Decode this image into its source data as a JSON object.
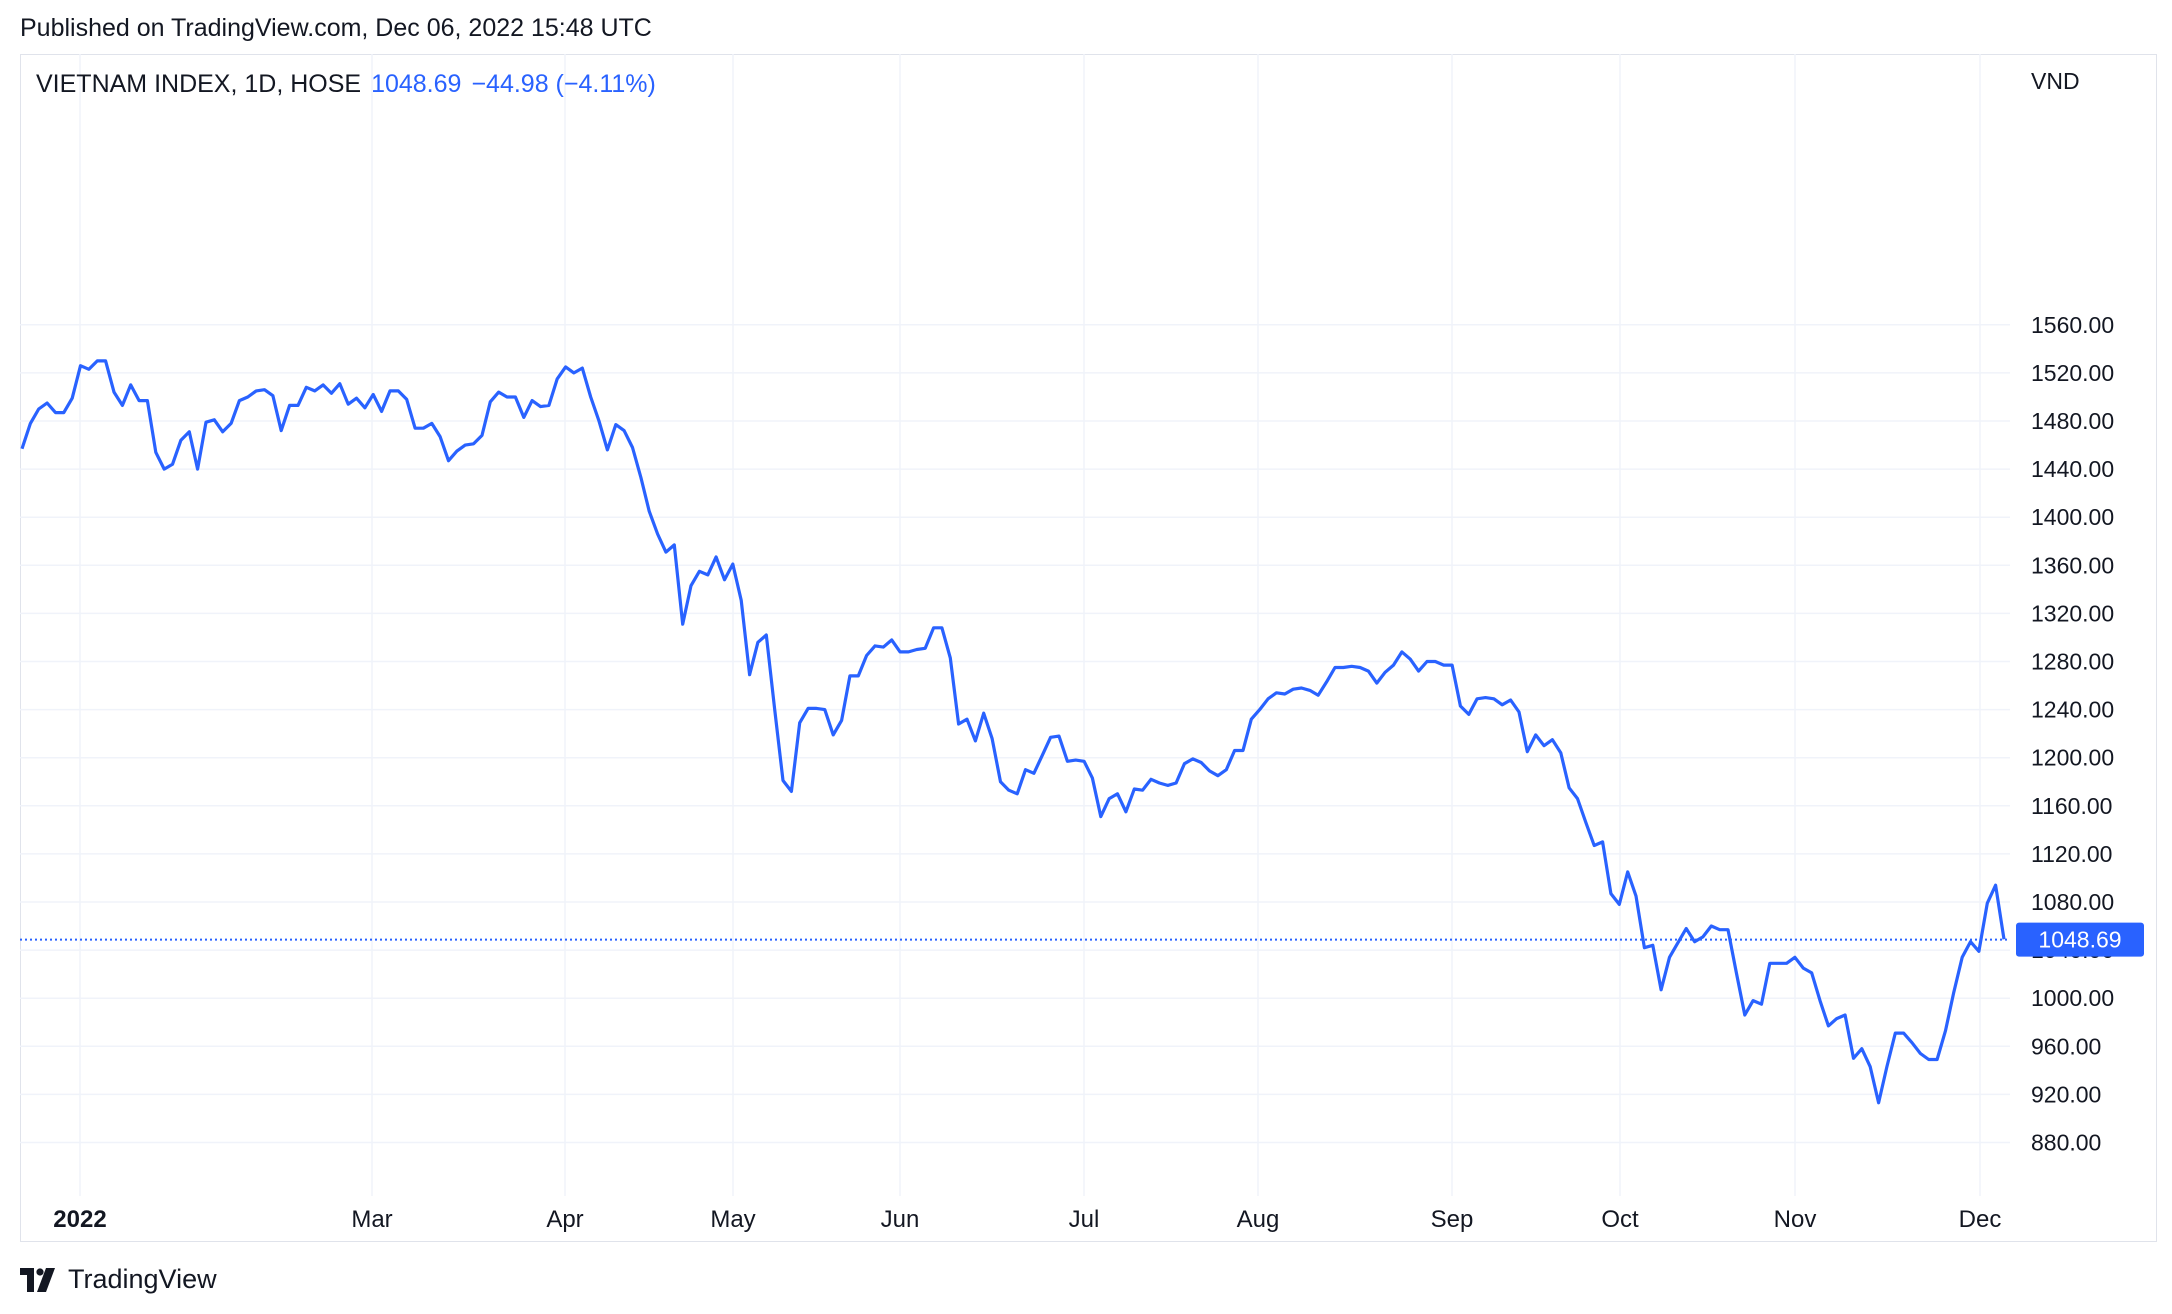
{
  "header": {
    "published": "Published on TradingView.com, Dec 06, 2022 15:48 UTC"
  },
  "legend": {
    "symbol": "VIETNAM INDEX, 1D, HOSE",
    "last_value": "1048.69",
    "change": "−44.98 (−4.11%)"
  },
  "footer": {
    "brand": "TradingView"
  },
  "colors": {
    "line": "#2962ff",
    "grid": "#f0f3fa",
    "text": "#131722"
  },
  "chart_data": {
    "type": "line",
    "currency_label": "VND",
    "last_price_label": "1048.69",
    "last_price": 1048.69,
    "ylim": [
      850,
      1570
    ],
    "y_ticks": [
      "1560.00",
      "1520.00",
      "1480.00",
      "1440.00",
      "1400.00",
      "1360.00",
      "1320.00",
      "1280.00",
      "1240.00",
      "1200.00",
      "1160.00",
      "1120.00",
      "1080.00",
      "1040.00",
      "1000.00",
      "960.00",
      "920.00",
      "880.00"
    ],
    "x_ticks": [
      "2022",
      "Mar",
      "Apr",
      "May",
      "Jun",
      "Jul",
      "Aug",
      "Sep",
      "Oct",
      "Nov",
      "Dec"
    ],
    "grid": true,
    "series": [
      {
        "values": [
          1457,
          1478,
          1490,
          1495,
          1487,
          1487,
          1499,
          1526,
          1523,
          1530,
          1530,
          1504,
          1493,
          1510,
          1497,
          1497,
          1454,
          1440,
          1444,
          1464,
          1471,
          1440,
          1479,
          1481,
          1471,
          1478,
          1497,
          1500,
          1505,
          1506,
          1501,
          1472,
          1493,
          1493,
          1508,
          1505,
          1510,
          1503,
          1511,
          1494,
          1499,
          1491,
          1502,
          1488,
          1505,
          1505,
          1498,
          1474,
          1474,
          1478,
          1467,
          1447,
          1455,
          1460,
          1461,
          1468,
          1496,
          1504,
          1500,
          1500,
          1483,
          1497,
          1492,
          1493,
          1515,
          1525,
          1520,
          1524,
          1500,
          1480,
          1456,
          1477,
          1472,
          1458,
          1433,
          1405,
          1386,
          1371,
          1377,
          1311,
          1343,
          1355,
          1352,
          1367,
          1348,
          1361,
          1331,
          1269,
          1296,
          1302,
          1240,
          1181,
          1172,
          1229,
          1241,
          1241,
          1240,
          1219,
          1231,
          1268,
          1268,
          1285,
          1293,
          1292,
          1298,
          1288,
          1288,
          1290,
          1291,
          1308,
          1308,
          1283,
          1228,
          1232,
          1214,
          1237,
          1216,
          1180,
          1173,
          1170,
          1190,
          1187,
          1202,
          1217,
          1218,
          1197,
          1198,
          1197,
          1183,
          1151,
          1166,
          1170,
          1155,
          1174,
          1173,
          1182,
          1179,
          1177,
          1179,
          1195,
          1199,
          1196,
          1189,
          1185,
          1190,
          1206,
          1206,
          1232,
          1240,
          1249,
          1254,
          1253,
          1257,
          1258,
          1256,
          1252,
          1263,
          1275,
          1275,
          1276,
          1275,
          1272,
          1262,
          1271,
          1277,
          1288,
          1282,
          1272,
          1280,
          1280,
          1277,
          1277,
          1243,
          1236,
          1249,
          1250,
          1249,
          1244,
          1248,
          1238,
          1205,
          1219,
          1210,
          1215,
          1204,
          1175,
          1166,
          1146,
          1127,
          1130,
          1087,
          1078,
          1105,
          1085,
          1042,
          1044,
          1007,
          1034,
          1046,
          1058,
          1047,
          1051,
          1060,
          1057,
          1057,
          1021,
          986,
          998,
          995,
          1029,
          1029,
          1029,
          1034,
          1025,
          1021,
          998,
          977,
          983,
          986,
          950,
          958,
          943,
          913,
          943,
          971,
          971,
          963,
          954,
          949,
          949,
          973,
          1005,
          1034,
          1047,
          1039,
          1079,
          1094,
          1049
        ]
      }
    ]
  }
}
